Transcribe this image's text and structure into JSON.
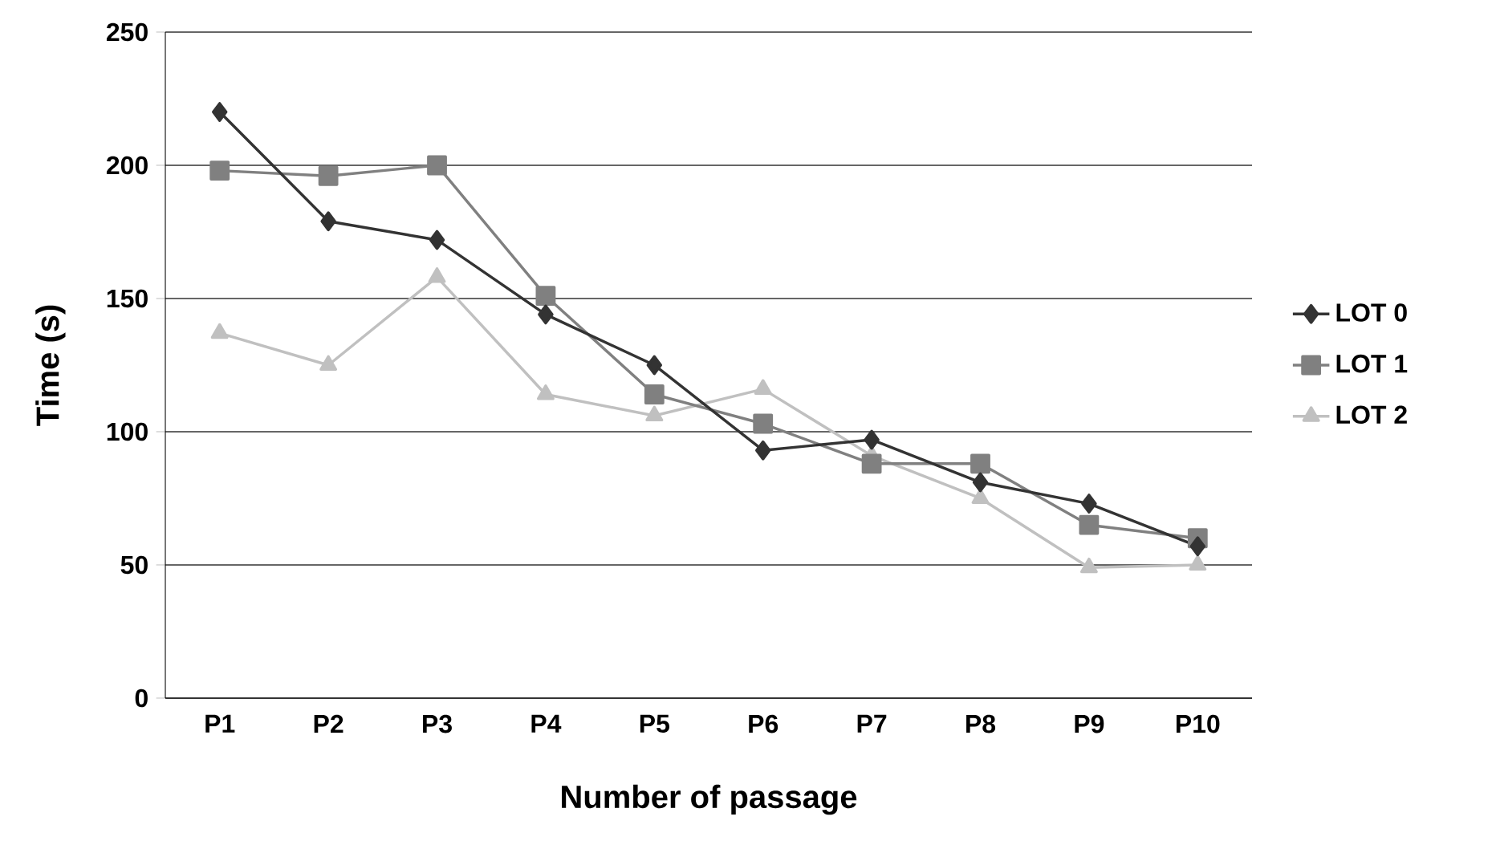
{
  "chart_data": {
    "type": "line",
    "xlabel": "Number of passage",
    "ylabel": "Time (s)",
    "categories": [
      "P1",
      "P2",
      "P3",
      "P4",
      "P5",
      "P6",
      "P7",
      "P8",
      "P9",
      "P10"
    ],
    "series": [
      {
        "name": "LOT 0",
        "color": "#333333",
        "marker": "diamond",
        "values": [
          220,
          179,
          172,
          144,
          125,
          93,
          97,
          81,
          73,
          57
        ]
      },
      {
        "name": "LOT 1",
        "color": "#808080",
        "marker": "square",
        "values": [
          198,
          196,
          200,
          151,
          114,
          103,
          88,
          88,
          65,
          60
        ]
      },
      {
        "name": "LOT 2",
        "color": "#c0c0c0",
        "marker": "triangle",
        "values": [
          137,
          125,
          158,
          114,
          106,
          116,
          91,
          75,
          49,
          50
        ]
      }
    ],
    "ylim": [
      0,
      250
    ],
    "yticks": [
      0,
      50,
      100,
      150,
      200,
      250
    ],
    "grid": "y",
    "legend": "right",
    "line_style": "solid"
  }
}
